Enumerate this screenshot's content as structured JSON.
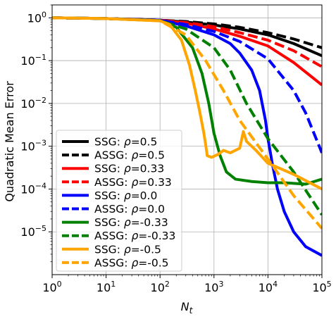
{
  "chart_data": {
    "type": "line",
    "title": "",
    "xlabel": "N_t",
    "ylabel": "Quadratic Mean Error",
    "xscale": "log",
    "yscale": "log",
    "xlim": [
      1,
      100000
    ],
    "ylim": [
      1e-06,
      2
    ],
    "grid": true,
    "legend_position": "lower-left",
    "x_ticks": [
      {
        "value": 1,
        "base": "10",
        "exp": "0"
      },
      {
        "value": 10,
        "base": "10",
        "exp": "1"
      },
      {
        "value": 100,
        "base": "10",
        "exp": "2"
      },
      {
        "value": 1000,
        "base": "10",
        "exp": "3"
      },
      {
        "value": 10000,
        "base": "10",
        "exp": "4"
      },
      {
        "value": 100000,
        "base": "10",
        "exp": "5"
      }
    ],
    "y_ticks": [
      {
        "value": 1,
        "base": "10",
        "exp": "0"
      },
      {
        "value": 0.1,
        "base": "10",
        "exp": "−1"
      },
      {
        "value": 0.01,
        "base": "10",
        "exp": "−2"
      },
      {
        "value": 0.001,
        "base": "10",
        "exp": "−3"
      },
      {
        "value": 0.0001,
        "base": "10",
        "exp": "−4"
      },
      {
        "value": 1e-05,
        "base": "10",
        "exp": "−5"
      }
    ],
    "series": [
      {
        "name": "SSG: ρ=0.5",
        "label_prefix": "SSG: ",
        "rho": "0.5",
        "color": "#000000",
        "dash": "solid",
        "points": [
          [
            1,
            1.0
          ],
          [
            10,
            0.96
          ],
          [
            100,
            0.88
          ],
          [
            300,
            0.8
          ],
          [
            1000,
            0.68
          ],
          [
            3000,
            0.55
          ],
          [
            10000,
            0.4
          ],
          [
            30000,
            0.25
          ],
          [
            100000,
            0.13
          ]
        ]
      },
      {
        "name": "ASSG: ρ=0.5",
        "label_prefix": "ASSG: ",
        "rho": "0.5",
        "color": "#000000",
        "dash": "dashed",
        "points": [
          [
            1,
            1.0
          ],
          [
            10,
            0.96
          ],
          [
            100,
            0.88
          ],
          [
            300,
            0.82
          ],
          [
            1000,
            0.72
          ],
          [
            3000,
            0.6
          ],
          [
            10000,
            0.45
          ],
          [
            30000,
            0.32
          ],
          [
            100000,
            0.2
          ]
        ]
      },
      {
        "name": "SSG: ρ=0.33",
        "label_prefix": "SSG: ",
        "rho": "0.33",
        "color": "#ff0000",
        "dash": "solid",
        "points": [
          [
            1,
            1.0
          ],
          [
            10,
            0.96
          ],
          [
            100,
            0.88
          ],
          [
            300,
            0.75
          ],
          [
            1000,
            0.55
          ],
          [
            3000,
            0.37
          ],
          [
            10000,
            0.22
          ],
          [
            30000,
            0.09
          ],
          [
            100000,
            0.027
          ]
        ]
      },
      {
        "name": "ASSG: ρ=0.33",
        "label_prefix": "ASSG: ",
        "rho": "0.33",
        "color": "#ff0000",
        "dash": "dashed",
        "points": [
          [
            1,
            1.0
          ],
          [
            10,
            0.96
          ],
          [
            100,
            0.88
          ],
          [
            300,
            0.78
          ],
          [
            1000,
            0.62
          ],
          [
            3000,
            0.45
          ],
          [
            10000,
            0.3
          ],
          [
            30000,
            0.17
          ],
          [
            100000,
            0.072
          ]
        ]
      },
      {
        "name": "SSG: ρ=0.0",
        "label_prefix": "SSG: ",
        "rho": "0.0",
        "color": "#0000ff",
        "dash": "solid",
        "points": [
          [
            1,
            1.0
          ],
          [
            10,
            0.96
          ],
          [
            100,
            0.87
          ],
          [
            300,
            0.65
          ],
          [
            1000,
            0.4
          ],
          [
            2000,
            0.25
          ],
          [
            3000,
            0.15
          ],
          [
            5000,
            0.06
          ],
          [
            7000,
            0.02
          ],
          [
            9000,
            0.004
          ],
          [
            10000,
            0.0015
          ],
          [
            12000,
            0.0004
          ],
          [
            15000,
            0.0001
          ],
          [
            20000,
            3e-05
          ],
          [
            30000,
            1e-05
          ],
          [
            50000,
            4.5e-06
          ],
          [
            100000,
            2.8e-06
          ]
        ]
      },
      {
        "name": "ASSG: ρ=0.0",
        "label_prefix": "ASSG: ",
        "rho": "0.0",
        "color": "#0000ff",
        "dash": "dashed",
        "points": [
          [
            1,
            1.0
          ],
          [
            10,
            0.96
          ],
          [
            100,
            0.88
          ],
          [
            300,
            0.7
          ],
          [
            1000,
            0.48
          ],
          [
            3000,
            0.28
          ],
          [
            10000,
            0.11
          ],
          [
            30000,
            0.02
          ],
          [
            50000,
            0.006
          ],
          [
            100000,
            0.0007
          ]
        ]
      },
      {
        "name": "SSG: ρ=-0.33",
        "label_prefix": "SSG: ",
        "rho": "-0.33",
        "color": "#008000",
        "dash": "solid",
        "points": [
          [
            1,
            1.0
          ],
          [
            10,
            0.96
          ],
          [
            100,
            0.86
          ],
          [
            200,
            0.6
          ],
          [
            400,
            0.2
          ],
          [
            600,
            0.05
          ],
          [
            800,
            0.01
          ],
          [
            1000,
            0.002
          ],
          [
            1300,
            0.0006
          ],
          [
            1700,
            0.00025
          ],
          [
            2500,
            0.00017
          ],
          [
            5000,
            0.00015
          ],
          [
            10000,
            0.00014
          ],
          [
            20000,
            0.00014
          ],
          [
            50000,
            0.00013
          ],
          [
            100000,
            0.00017
          ]
        ]
      },
      {
        "name": "ASSG: ρ=-0.33",
        "label_prefix": "ASSG: ",
        "rho": "-0.33",
        "color": "#008000",
        "dash": "dashed",
        "points": [
          [
            1,
            1.0
          ],
          [
            10,
            0.96
          ],
          [
            100,
            0.86
          ],
          [
            300,
            0.55
          ],
          [
            1000,
            0.2
          ],
          [
            2000,
            0.06
          ],
          [
            4000,
            0.01
          ],
          [
            10000,
            0.0015
          ],
          [
            30000,
            0.00025
          ],
          [
            100000,
            2.5e-05
          ]
        ]
      },
      {
        "name": "SSG: ρ=-0.5",
        "label_prefix": "SSG: ",
        "rho": "-0.5",
        "color": "#ffa500",
        "dash": "solid",
        "points": [
          [
            1,
            1.0
          ],
          [
            10,
            0.96
          ],
          [
            100,
            0.85
          ],
          [
            150,
            0.7
          ],
          [
            250,
            0.3
          ],
          [
            350,
            0.08
          ],
          [
            450,
            0.02
          ],
          [
            550,
            0.006
          ],
          [
            650,
            0.002
          ],
          [
            700,
            0.0011
          ],
          [
            750,
            0.0006
          ],
          [
            900,
            0.00055
          ],
          [
            1200,
            0.00065
          ],
          [
            1500,
            0.0008
          ],
          [
            2000,
            0.0007
          ],
          [
            3000,
            0.0009
          ],
          [
            3500,
            0.0022
          ],
          [
            4000,
            0.0013
          ],
          [
            6000,
            0.0008
          ],
          [
            10000,
            0.0004
          ],
          [
            30000,
            0.00022
          ],
          [
            100000,
            0.0001
          ]
        ]
      },
      {
        "name": "ASSG: ρ=-0.5",
        "label_prefix": "ASSG: ",
        "rho": "-0.5",
        "color": "#ffa500",
        "dash": "dashed",
        "points": [
          [
            1,
            1.0
          ],
          [
            10,
            0.96
          ],
          [
            100,
            0.85
          ],
          [
            300,
            0.4
          ],
          [
            700,
            0.1
          ],
          [
            1500,
            0.02
          ],
          [
            3000,
            0.004
          ],
          [
            10000,
            0.0005
          ],
          [
            30000,
            7e-05
          ],
          [
            100000,
            1.2e-05
          ]
        ]
      }
    ]
  }
}
